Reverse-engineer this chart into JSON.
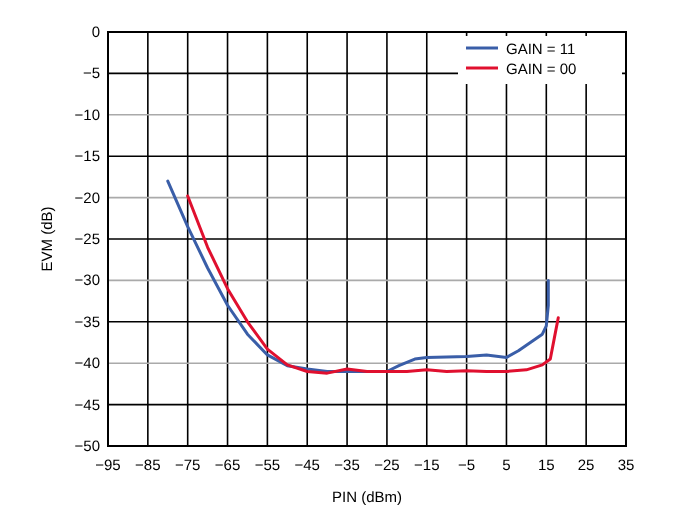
{
  "chart_data": {
    "type": "line",
    "xlabel": "PIN (dBm)",
    "ylabel": "EVM (dB)",
    "xlim": [
      -95,
      35
    ],
    "ylim": [
      -50,
      0
    ],
    "xticks": [
      -95,
      -85,
      -75,
      -65,
      -55,
      -45,
      -35,
      -25,
      -15,
      -5,
      5,
      15,
      25,
      35
    ],
    "yticks": [
      -50,
      -45,
      -40,
      -35,
      -30,
      -25,
      -20,
      -15,
      -10,
      -5,
      0
    ],
    "grid": true,
    "legend": "top right",
    "series": [
      {
        "name": "GAIN = 11",
        "color": "#3a5ea8",
        "x": [
          -80,
          -75,
          -70,
          -65,
          -60,
          -55,
          -50,
          -45,
          -40,
          -35,
          -30,
          -25,
          -22,
          -18,
          -15,
          -5,
          0,
          5,
          8,
          11,
          14,
          15,
          15.5,
          15.5
        ],
        "values": [
          -18,
          -23.5,
          -28.5,
          -33,
          -36.5,
          -39,
          -40.3,
          -40.7,
          -41,
          -41,
          -41,
          -41,
          -40.3,
          -39.5,
          -39.3,
          -39.2,
          -39,
          -39.3,
          -38.5,
          -37.5,
          -36.5,
          -35.5,
          -33,
          -30
        ]
      },
      {
        "name": "GAIN = 00",
        "color": "#e0102f",
        "x": [
          -75,
          -70,
          -65,
          -60,
          -55,
          -50,
          -45,
          -40,
          -35,
          -30,
          -25,
          -20,
          -15,
          -10,
          -5,
          0,
          5,
          10,
          14,
          16,
          17,
          18
        ],
        "values": [
          -19.8,
          -26,
          -31,
          -35,
          -38.3,
          -40.2,
          -41,
          -41.2,
          -40.7,
          -41,
          -41,
          -41,
          -40.8,
          -41,
          -40.9,
          -41,
          -41,
          -40.8,
          -40.2,
          -39.5,
          -37,
          -34.5
        ]
      }
    ]
  }
}
